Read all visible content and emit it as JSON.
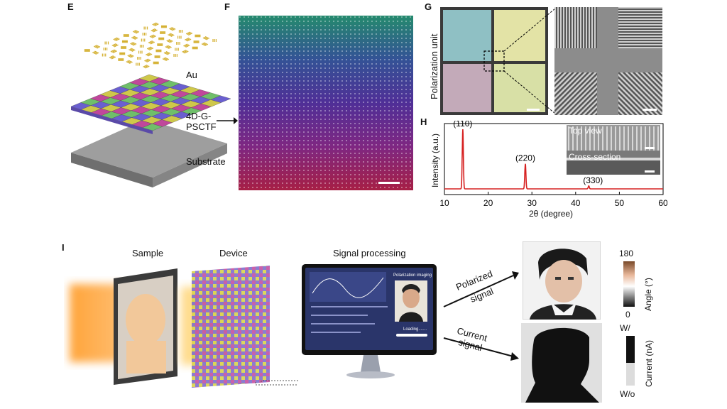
{
  "panels": {
    "E": {
      "letter": "E",
      "layer_au": "Au",
      "layer_film_1": "4D-G-",
      "layer_film_2": "PSCTF",
      "layer_substrate": "Substrate"
    },
    "F": {
      "letter": "F"
    },
    "G": {
      "letter": "G",
      "side_label": "Polarization unit"
    },
    "H": {
      "letter": "H",
      "inset_top": "Top view",
      "inset_bottom": "Cross-section"
    },
    "I": {
      "letter": "I",
      "step_sample": "Sample",
      "step_device": "Device",
      "step_processing": "Signal processing",
      "monitor_title": "Polarization imaging",
      "monitor_loading": "Loading.......",
      "arrow_polarized_1": "Polarized",
      "arrow_polarized_2": "signal",
      "arrow_current_1": "Current",
      "arrow_current_2": "signal",
      "angle_max": "180",
      "angle_min": "0",
      "angle_axis": "Angle (°)",
      "current_top": "W/",
      "current_bottom": "W/o",
      "current_axis": "Current (nA)"
    }
  },
  "chart_data": {
    "type": "line",
    "xlabel": "2θ (degree)",
    "ylabel": "Intensity (a.u.)",
    "xlim": [
      10,
      60
    ],
    "x_ticks": [
      "10",
      "20",
      "30",
      "40",
      "50",
      "60"
    ],
    "peaks": [
      {
        "label": "(110)",
        "x": 14.2,
        "rel_height": 1.0
      },
      {
        "label": "(220)",
        "x": 28.5,
        "rel_height": 0.42
      },
      {
        "label": "(330)",
        "x": 43.0,
        "rel_height": 0.05
      }
    ],
    "line_color": "#d62020"
  }
}
